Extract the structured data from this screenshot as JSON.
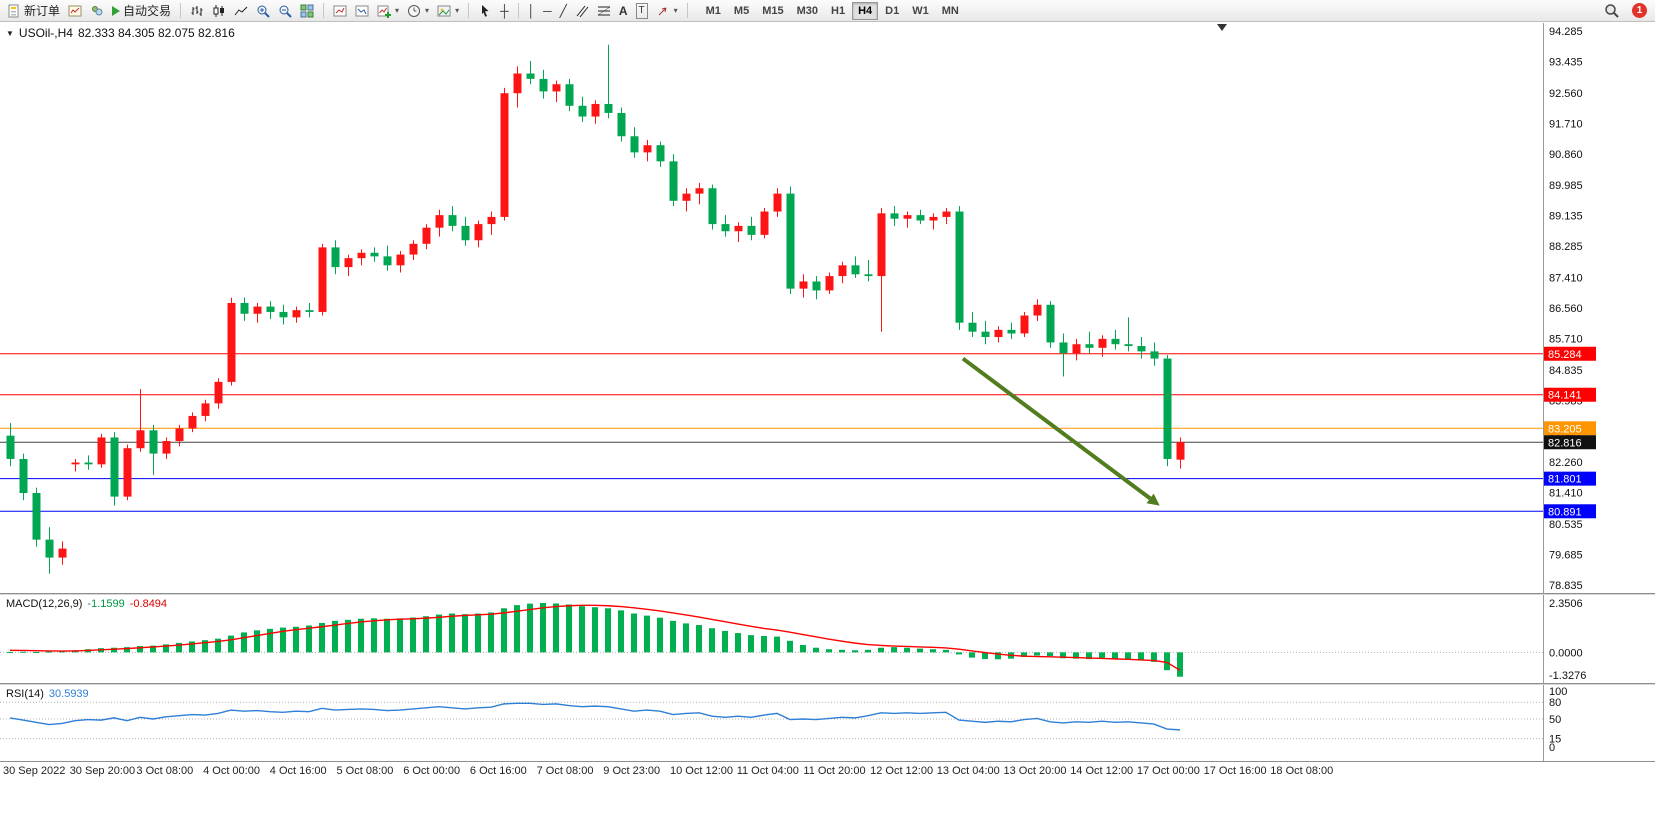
{
  "toolbar": {
    "new_order": "新订单",
    "auto_trading": "自动交易",
    "timeframes": [
      "M1",
      "M5",
      "M15",
      "M30",
      "H1",
      "H4",
      "D1",
      "W1",
      "MN"
    ],
    "active_timeframe": "H4",
    "notification_count": "1",
    "glyphs": {
      "dropdown": "▾",
      "crosshair": "┼",
      "vline": "│",
      "hline": "─",
      "trendline": "╱",
      "text_tool": "A",
      "label_tool": "T"
    }
  },
  "chart": {
    "title": {
      "marker": "▼",
      "symbol_period": "USOil-,H4",
      "ohlc": "82.333 84.305 82.075 82.816"
    },
    "price_axis": {
      "min": 78.835,
      "max": 94.285,
      "labels": [
        "94.285",
        "93.435",
        "92.560",
        "91.710",
        "90.860",
        "89.985",
        "89.135",
        "88.285",
        "87.410",
        "86.560",
        "85.710",
        "84.835",
        "83.985",
        "83.110",
        "82.260",
        "81.410",
        "80.535",
        "79.685",
        "78.835"
      ]
    },
    "hlines": [
      {
        "price": 85.284,
        "label": "85.284",
        "color": "#ff0000",
        "badge": "#ff0000"
      },
      {
        "price": 84.141,
        "label": "84.141",
        "color": "#ff0000",
        "badge": "#ff0000"
      },
      {
        "price": 83.205,
        "label": "83.205",
        "color": "#ff9500",
        "badge": "#ff9500"
      },
      {
        "price": 81.801,
        "label": "81.801",
        "color": "#0000ff",
        "badge": "#0000ff"
      },
      {
        "price": 80.891,
        "label": "80.891",
        "color": "#0000ff",
        "badge": "#0000ff"
      }
    ],
    "bid_line": {
      "price": 82.816,
      "label": "82.816",
      "color": "#444444",
      "badge": "#111111"
    },
    "arrow": {
      "bar1": 73.3,
      "price1": 85.15,
      "bar2": 87.7,
      "price2": 81.25,
      "color": "#517d1e"
    }
  },
  "chart_data": {
    "type": "candlestick",
    "symbol": "USOil-",
    "period": "H4",
    "bull_color": "#fe1414",
    "bear_color": "#00a651",
    "candles": [
      [
        83.0,
        83.35,
        82.15,
        82.35
      ],
      [
        82.35,
        82.5,
        81.2,
        81.4
      ],
      [
        81.4,
        81.55,
        79.9,
        80.1
      ],
      [
        80.1,
        80.45,
        79.15,
        79.6
      ],
      [
        79.6,
        80.05,
        79.4,
        79.85
      ],
      [
        82.2,
        82.35,
        82.0,
        82.25
      ],
      [
        82.25,
        82.45,
        82.05,
        82.2
      ],
      [
        82.2,
        83.05,
        82.1,
        82.95
      ],
      [
        82.95,
        83.1,
        81.05,
        81.3
      ],
      [
        81.3,
        82.75,
        81.2,
        82.65
      ],
      [
        82.65,
        84.3,
        82.55,
        83.15
      ],
      [
        83.15,
        83.3,
        81.9,
        82.5
      ],
      [
        82.5,
        82.95,
        82.35,
        82.85
      ],
      [
        82.85,
        83.3,
        82.7,
        83.2
      ],
      [
        83.2,
        83.65,
        83.1,
        83.55
      ],
      [
        83.55,
        84.0,
        83.4,
        83.9
      ],
      [
        83.9,
        84.6,
        83.75,
        84.5
      ],
      [
        84.5,
        86.85,
        84.4,
        86.7
      ],
      [
        86.7,
        86.85,
        86.2,
        86.4
      ],
      [
        86.4,
        86.7,
        86.15,
        86.6
      ],
      [
        86.6,
        86.75,
        86.25,
        86.45
      ],
      [
        86.45,
        86.65,
        86.1,
        86.3
      ],
      [
        86.3,
        86.6,
        86.15,
        86.5
      ],
      [
        86.5,
        86.7,
        86.3,
        86.45
      ],
      [
        86.45,
        88.35,
        86.35,
        88.25
      ],
      [
        88.25,
        88.45,
        87.5,
        87.7
      ],
      [
        87.7,
        88.05,
        87.45,
        87.95
      ],
      [
        87.95,
        88.2,
        87.75,
        88.1
      ],
      [
        88.1,
        88.25,
        87.85,
        88.0
      ],
      [
        88.0,
        88.3,
        87.6,
        87.75
      ],
      [
        87.75,
        88.15,
        87.55,
        88.05
      ],
      [
        88.05,
        88.45,
        87.9,
        88.35
      ],
      [
        88.35,
        88.9,
        88.2,
        88.8
      ],
      [
        88.8,
        89.3,
        88.55,
        89.15
      ],
      [
        89.15,
        89.4,
        88.7,
        88.85
      ],
      [
        88.85,
        89.1,
        88.3,
        88.45
      ],
      [
        88.45,
        89.0,
        88.25,
        88.9
      ],
      [
        88.9,
        89.25,
        88.6,
        89.1
      ],
      [
        89.1,
        92.7,
        89.0,
        92.55
      ],
      [
        92.55,
        93.3,
        92.15,
        93.1
      ],
      [
        93.1,
        93.45,
        92.8,
        92.95
      ],
      [
        92.95,
        93.2,
        92.4,
        92.6
      ],
      [
        92.6,
        92.9,
        92.3,
        92.8
      ],
      [
        92.8,
        92.95,
        92.05,
        92.2
      ],
      [
        92.2,
        92.45,
        91.75,
        91.9
      ],
      [
        91.9,
        92.35,
        91.7,
        92.25
      ],
      [
        92.25,
        93.9,
        91.85,
        92.0
      ],
      [
        92.0,
        92.15,
        91.2,
        91.35
      ],
      [
        91.35,
        91.6,
        90.75,
        90.9
      ],
      [
        90.9,
        91.25,
        90.65,
        91.1
      ],
      [
        91.1,
        91.2,
        90.5,
        90.65
      ],
      [
        90.65,
        90.85,
        89.4,
        89.55
      ],
      [
        89.55,
        89.9,
        89.25,
        89.75
      ],
      [
        89.75,
        90.05,
        89.45,
        89.9
      ],
      [
        89.9,
        90.0,
        88.75,
        88.9
      ],
      [
        88.9,
        89.15,
        88.55,
        88.7
      ],
      [
        88.7,
        88.95,
        88.4,
        88.85
      ],
      [
        88.85,
        89.1,
        88.45,
        88.6
      ],
      [
        88.6,
        89.35,
        88.5,
        89.25
      ],
      [
        89.25,
        89.9,
        89.1,
        89.75
      ],
      [
        89.75,
        89.95,
        86.95,
        87.1
      ],
      [
        87.1,
        87.5,
        86.85,
        87.3
      ],
      [
        87.3,
        87.45,
        86.8,
        87.05
      ],
      [
        87.05,
        87.55,
        86.95,
        87.45
      ],
      [
        87.45,
        87.85,
        87.25,
        87.75
      ],
      [
        87.75,
        88.0,
        87.4,
        87.5
      ],
      [
        87.5,
        87.9,
        87.3,
        87.45
      ],
      [
        87.45,
        89.35,
        85.9,
        89.2
      ],
      [
        89.2,
        89.4,
        88.85,
        89.05
      ],
      [
        89.05,
        89.25,
        88.8,
        89.15
      ],
      [
        89.15,
        89.3,
        88.9,
        89.0
      ],
      [
        89.0,
        89.2,
        88.75,
        89.1
      ],
      [
        89.1,
        89.35,
        88.9,
        89.25
      ],
      [
        89.25,
        89.4,
        85.95,
        86.15
      ],
      [
        86.15,
        86.45,
        85.75,
        85.9
      ],
      [
        85.9,
        86.2,
        85.55,
        85.75
      ],
      [
        85.75,
        86.05,
        85.6,
        85.95
      ],
      [
        85.95,
        86.15,
        85.7,
        85.85
      ],
      [
        85.85,
        86.45,
        85.75,
        86.35
      ],
      [
        86.35,
        86.8,
        86.2,
        86.65
      ],
      [
        86.65,
        86.75,
        85.45,
        85.6
      ],
      [
        85.6,
        85.85,
        84.65,
        85.3
      ],
      [
        85.3,
        85.7,
        85.1,
        85.55
      ],
      [
        85.55,
        85.9,
        85.3,
        85.45
      ],
      [
        85.45,
        85.8,
        85.2,
        85.7
      ],
      [
        85.7,
        85.95,
        85.4,
        85.55
      ],
      [
        85.55,
        86.3,
        85.35,
        85.5
      ],
      [
        85.5,
        85.75,
        85.15,
        85.35
      ],
      [
        85.35,
        85.6,
        84.95,
        85.15
      ],
      [
        85.15,
        85.25,
        82.15,
        82.35
      ],
      [
        82.33,
        82.95,
        82.08,
        82.82
      ]
    ],
    "macd": {
      "name": "MACD(12,26,9)",
      "value_main": "-1.1599",
      "value_signal": "-0.8494",
      "histogram_color": "#00b050",
      "signal_color": "#ff0000",
      "scale_max": 2.3506,
      "axis": [
        {
          "v": 2.3506,
          "label": "2.3506"
        },
        {
          "v": 0,
          "label": "0.0000"
        },
        {
          "v": -1.3276,
          "label": "-1.3276"
        }
      ],
      "histogram": [
        0.02,
        0.03,
        0.02,
        0.04,
        0.06,
        0.1,
        0.15,
        0.2,
        0.22,
        0.25,
        0.3,
        0.32,
        0.38,
        0.45,
        0.52,
        0.58,
        0.65,
        0.8,
        0.95,
        1.05,
        1.12,
        1.18,
        1.22,
        1.28,
        1.4,
        1.5,
        1.55,
        1.6,
        1.62,
        1.6,
        1.62,
        1.66,
        1.72,
        1.8,
        1.85,
        1.82,
        1.85,
        1.9,
        2.1,
        2.25,
        2.32,
        2.35,
        2.33,
        2.28,
        2.2,
        2.15,
        2.1,
        2.0,
        1.85,
        1.75,
        1.65,
        1.5,
        1.38,
        1.3,
        1.15,
        1.02,
        0.92,
        0.82,
        0.78,
        0.75,
        0.55,
        0.35,
        0.22,
        0.15,
        0.12,
        0.1,
        0.12,
        0.22,
        0.25,
        0.22,
        0.18,
        0.15,
        0.12,
        -0.1,
        -0.25,
        -0.32,
        -0.33,
        -0.3,
        -0.22,
        -0.15,
        -0.18,
        -0.28,
        -0.3,
        -0.32,
        -0.3,
        -0.32,
        -0.35,
        -0.38,
        -0.45,
        -0.85,
        -1.16
      ],
      "signal": [
        0.1,
        0.09,
        0.08,
        0.07,
        0.06,
        0.07,
        0.09,
        0.12,
        0.15,
        0.18,
        0.22,
        0.26,
        0.3,
        0.35,
        0.4,
        0.46,
        0.52,
        0.6,
        0.7,
        0.8,
        0.9,
        1.0,
        1.08,
        1.15,
        1.22,
        1.3,
        1.38,
        1.45,
        1.5,
        1.55,
        1.58,
        1.6,
        1.63,
        1.67,
        1.72,
        1.76,
        1.79,
        1.82,
        1.88,
        1.96,
        2.04,
        2.12,
        2.18,
        2.22,
        2.24,
        2.24,
        2.22,
        2.18,
        2.12,
        2.05,
        1.97,
        1.88,
        1.78,
        1.68,
        1.57,
        1.46,
        1.35,
        1.24,
        1.14,
        1.06,
        0.96,
        0.85,
        0.74,
        0.63,
        0.53,
        0.44,
        0.37,
        0.33,
        0.3,
        0.28,
        0.26,
        0.24,
        0.21,
        0.15,
        0.07,
        -0.01,
        -0.08,
        -0.14,
        -0.18,
        -0.2,
        -0.21,
        -0.23,
        -0.25,
        -0.27,
        -0.29,
        -0.31,
        -0.33,
        -0.36,
        -0.39,
        -0.48,
        -0.85
      ]
    },
    "rsi": {
      "name": "RSI(14)",
      "value": "30.5939",
      "line_color": "#2f7fd6",
      "levels": [
        80,
        50,
        15
      ],
      "axis": [
        {
          "v": 100,
          "label": "100"
        },
        {
          "v": 80,
          "label": "80"
        },
        {
          "v": 50,
          "label": "50"
        },
        {
          "v": 15,
          "label": "15"
        },
        {
          "v": 0,
          "label": "0"
        }
      ],
      "values": [
        52,
        48,
        44,
        40,
        42,
        47,
        49,
        48,
        52,
        47,
        53,
        50,
        54,
        56,
        58,
        57,
        60,
        66,
        64,
        65,
        63,
        62,
        64,
        63,
        69,
        66,
        67,
        68,
        67,
        65,
        66,
        68,
        70,
        72,
        70,
        68,
        70,
        71,
        77,
        78,
        78,
        76,
        77,
        74,
        72,
        73,
        72,
        68,
        64,
        66,
        64,
        58,
        60,
        61,
        55,
        53,
        55,
        53,
        57,
        60,
        49,
        50,
        49,
        51,
        53,
        52,
        56,
        61,
        60,
        61,
        60,
        61,
        62,
        48,
        46,
        44,
        46,
        45,
        49,
        51,
        45,
        43,
        45,
        44,
        46,
        44,
        45,
        43,
        41,
        32,
        30.6
      ]
    },
    "time_labels": [
      "30 Sep 2022",
      "30 Sep 20:00",
      "3 Oct 08:00",
      "4 Oct 00:00",
      "4 Oct 16:00",
      "5 Oct 08:00",
      "6 Oct 00:00",
      "6 Oct 16:00",
      "7 Oct 08:00",
      "9 Oct 23:00",
      "10 Oct 12:00",
      "11 Oct 04:00",
      "11 Oct 20:00",
      "12 Oct 12:00",
      "13 Oct 04:00",
      "13 Oct 20:00",
      "14 Oct 12:00",
      "17 Oct 00:00",
      "17 Oct 16:00",
      "18 Oct 08:00"
    ]
  }
}
